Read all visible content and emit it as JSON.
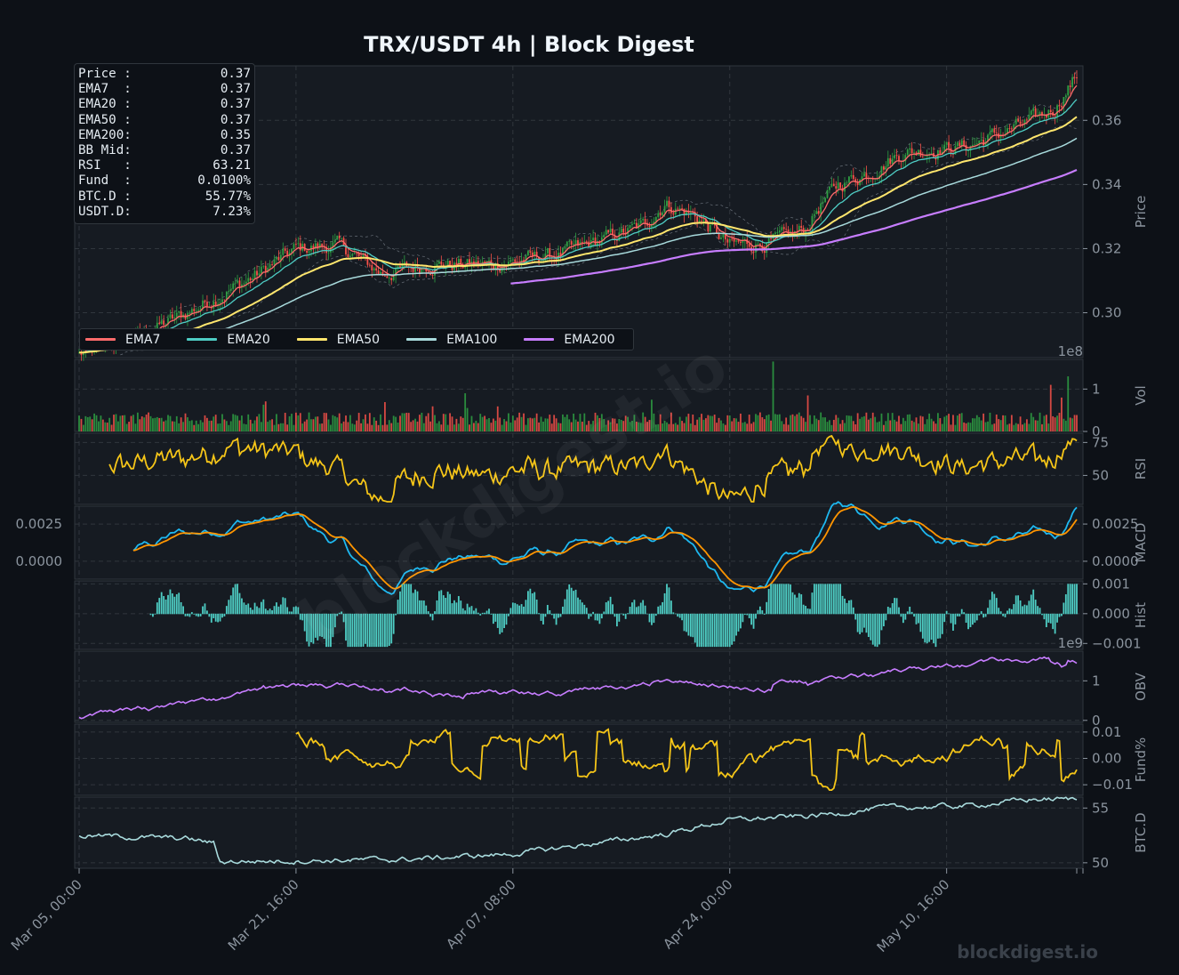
{
  "title": "TRX/USDT  4h  |  Block Digest",
  "watermark": "blockdigest.io",
  "footer_brand": "blockdigest.io",
  "colors": {
    "background": "#0d1117",
    "panel": "#161b22",
    "grid": "#30363d",
    "up": "#2ea043",
    "down": "#f85149",
    "ema7": "#ff6b6b",
    "ema20": "#4ecdc4",
    "ema50": "#ffe66d",
    "ema100": "#a8dadc",
    "ema200": "#c77dff",
    "rsi": "#f5c518",
    "macd": "#1eb8f0",
    "signal": "#ff9500",
    "hist": "#4ecdc4",
    "obv": "#c77dff",
    "funding": "#f5c518",
    "btcd": "#a8dadc"
  },
  "info_box": [
    {
      "key": "Price :",
      "value": "0.37"
    },
    {
      "key": "EMA7  :",
      "value": "0.37"
    },
    {
      "key": "EMA20 :",
      "value": "0.37"
    },
    {
      "key": "EMA50 :",
      "value": "0.37"
    },
    {
      "key": "EMA200:",
      "value": "0.35"
    },
    {
      "key": "BB Mid:",
      "value": "0.37"
    },
    {
      "key": "RSI   :",
      "value": "63.21"
    },
    {
      "key": "Fund  :",
      "value": "0.0100%"
    },
    {
      "key": "BTC.D :",
      "value": "55.77%"
    },
    {
      "key": "USDT.D:",
      "value": "7.23%"
    }
  ],
  "legend": [
    {
      "label": "EMA7",
      "color": "#ff6b6b"
    },
    {
      "label": "EMA20",
      "color": "#4ecdc4"
    },
    {
      "label": "EMA50",
      "color": "#ffe66d"
    },
    {
      "label": "EMA100",
      "color": "#a8dadc"
    },
    {
      "label": "EMA200",
      "color": "#c77dff"
    }
  ],
  "chart_data": {
    "type": "line",
    "interval": "4h",
    "bars": 461,
    "x_ticks": [
      "Mar 05, 00:00",
      "Mar 21, 16:00",
      "Apr 07, 08:00",
      "Apr 24, 00:00",
      "May 10, 16:00"
    ],
    "panels": [
      {
        "name": "price",
        "ylabel": "Price",
        "ylim": [
          0.286,
          0.377
        ],
        "yticks": [
          "0.30",
          "0.32",
          "0.34",
          "0.36"
        ],
        "ytick_values": [
          0.3,
          0.32,
          0.34,
          0.36
        ],
        "close_anchors": [
          [
            0,
            0.287
          ],
          [
            25,
            0.292
          ],
          [
            50,
            0.3
          ],
          [
            80,
            0.311
          ],
          [
            100,
            0.32
          ],
          [
            120,
            0.321
          ],
          [
            140,
            0.312
          ],
          [
            160,
            0.315
          ],
          [
            190,
            0.315
          ],
          [
            220,
            0.318
          ],
          [
            260,
            0.327
          ],
          [
            270,
            0.334
          ],
          [
            285,
            0.33
          ],
          [
            300,
            0.321
          ],
          [
            320,
            0.322
          ],
          [
            335,
            0.326
          ],
          [
            340,
            0.332
          ],
          [
            350,
            0.34
          ],
          [
            365,
            0.344
          ],
          [
            380,
            0.35
          ],
          [
            410,
            0.352
          ],
          [
            440,
            0.36
          ],
          [
            450,
            0.364
          ],
          [
            460,
            0.374
          ]
        ],
        "series": [
          {
            "name": "EMA7",
            "period": 7
          },
          {
            "name": "EMA20",
            "period": 20
          },
          {
            "name": "EMA50",
            "period": 50
          },
          {
            "name": "EMA100",
            "period": 100
          },
          {
            "name": "EMA200",
            "period": 200
          }
        ]
      },
      {
        "name": "volume",
        "ylabel": "Vol",
        "scale_label": "1e8",
        "ylim": [
          0,
          1.7
        ],
        "yticks": [
          "0",
          "1"
        ],
        "ytick_values": [
          0,
          1
        ]
      },
      {
        "name": "rsi",
        "ylabel": "RSI",
        "ylim": [
          28,
          82
        ],
        "yticks": [
          "50",
          "75"
        ],
        "ytick_values": [
          50,
          75
        ]
      },
      {
        "name": "macd",
        "ylabel": "MACD",
        "ylim": [
          -0.0012,
          0.0037
        ],
        "yticks": [
          "0.0000",
          "0.0025"
        ],
        "ytick_values": [
          0,
          0.0025
        ],
        "left_yticks": [
          "0.0000",
          "0.0025"
        ]
      },
      {
        "name": "hist",
        "ylabel": "Hist",
        "ylim": [
          -0.0012,
          0.0011
        ],
        "yticks": [
          "−0.001",
          "0.000",
          "0.001"
        ],
        "ytick_values": [
          -0.001,
          0,
          0.001
        ]
      },
      {
        "name": "obv",
        "ylabel": "OBV",
        "scale_label": "1e9",
        "ylim": [
          -0.05,
          1.75
        ],
        "yticks": [
          "0",
          "1"
        ],
        "ytick_values": [
          0,
          1
        ]
      },
      {
        "name": "funding",
        "ylabel": "Fund%",
        "ylim": [
          -0.014,
          0.013
        ],
        "yticks": [
          "−0.01",
          "0.00",
          "0.01"
        ],
        "ytick_values": [
          -0.01,
          0,
          0.01
        ]
      },
      {
        "name": "btcd",
        "ylabel": "BTC.D",
        "ylim": [
          49.5,
          56.0
        ],
        "yticks": [
          "50",
          "55"
        ],
        "ytick_values": [
          50,
          55
        ],
        "anchors": [
          [
            0,
            52.5
          ],
          [
            50,
            52.2
          ],
          [
            62,
            51.8
          ],
          [
            65,
            50.1
          ],
          [
            150,
            50.3
          ],
          [
            200,
            50.8
          ],
          [
            270,
            52.6
          ],
          [
            300,
            53.9
          ],
          [
            340,
            54.3
          ],
          [
            370,
            55.0
          ],
          [
            410,
            55.2
          ],
          [
            440,
            55.8
          ],
          [
            460,
            55.8
          ]
        ]
      }
    ]
  }
}
